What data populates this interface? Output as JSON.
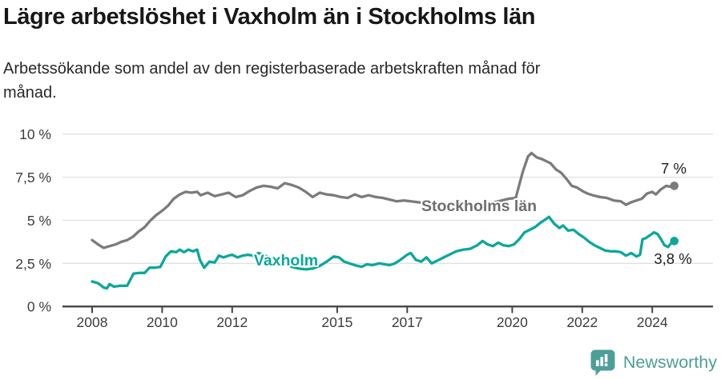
{
  "header": {
    "title": "Lägre arbetslöshet i Vaxholm än i Stockholms län",
    "subtitle": "Arbetssökande som andel av den registerbaserade arbetskraften månad för månad.",
    "subtitle_lines": [
      "Arbetssökande som andel av den registerbaserade arbetskraften månad för",
      "månad."
    ]
  },
  "footer": {
    "brand": "Newsworthy",
    "brand_color": "#4d9e99",
    "logo_icon": "bar-chart-speech-bubble-icon"
  },
  "chart_data": {
    "type": "line",
    "title": "Lägre arbetslöshet i Vaxholm än i Stockholms län",
    "xlabel": "",
    "ylabel": "",
    "unit": "%",
    "grid": "horizontal",
    "legend_position": "inline-on-line",
    "x_axis": {
      "range": [
        2007.2,
        2025.7
      ],
      "ticks": [
        2008,
        2010,
        2012,
        2015,
        2017,
        2020,
        2022,
        2024
      ],
      "tick_labels": [
        "2008",
        "2010",
        "2012",
        "2015",
        "2017",
        "2020",
        "2022",
        "2024"
      ]
    },
    "y_axis": {
      "range": [
        0,
        10
      ],
      "ticks": [
        0,
        2.5,
        5,
        7.5,
        10
      ],
      "tick_labels": [
        "0 %",
        "2,5 %",
        "5 %",
        "7,5 %",
        "10 %"
      ]
    },
    "series": [
      {
        "name": "Stockholms län",
        "color": "#7b7b7b",
        "label_color": "#6e6e6e",
        "end_value": 7.0,
        "end_label": "7 %",
        "points": [
          [
            2008.0,
            3.85
          ],
          [
            2008.17,
            3.6
          ],
          [
            2008.33,
            3.4
          ],
          [
            2008.5,
            3.5
          ],
          [
            2008.67,
            3.6
          ],
          [
            2008.83,
            3.75
          ],
          [
            2009.0,
            3.85
          ],
          [
            2009.17,
            4.05
          ],
          [
            2009.33,
            4.35
          ],
          [
            2009.5,
            4.6
          ],
          [
            2009.67,
            5.0
          ],
          [
            2009.83,
            5.3
          ],
          [
            2010.0,
            5.55
          ],
          [
            2010.17,
            5.85
          ],
          [
            2010.33,
            6.25
          ],
          [
            2010.5,
            6.5
          ],
          [
            2010.67,
            6.65
          ],
          [
            2010.83,
            6.6
          ],
          [
            2011.0,
            6.65
          ],
          [
            2011.1,
            6.45
          ],
          [
            2011.3,
            6.6
          ],
          [
            2011.5,
            6.4
          ],
          [
            2011.7,
            6.5
          ],
          [
            2011.9,
            6.6
          ],
          [
            2012.1,
            6.35
          ],
          [
            2012.3,
            6.45
          ],
          [
            2012.5,
            6.7
          ],
          [
            2012.7,
            6.9
          ],
          [
            2012.9,
            7.0
          ],
          [
            2013.1,
            6.95
          ],
          [
            2013.3,
            6.85
          ],
          [
            2013.5,
            7.15
          ],
          [
            2013.7,
            7.05
          ],
          [
            2013.9,
            6.9
          ],
          [
            2014.1,
            6.65
          ],
          [
            2014.3,
            6.35
          ],
          [
            2014.5,
            6.6
          ],
          [
            2014.7,
            6.5
          ],
          [
            2014.9,
            6.45
          ],
          [
            2015.1,
            6.35
          ],
          [
            2015.3,
            6.3
          ],
          [
            2015.5,
            6.5
          ],
          [
            2015.7,
            6.35
          ],
          [
            2015.9,
            6.45
          ],
          [
            2016.1,
            6.35
          ],
          [
            2016.3,
            6.3
          ],
          [
            2016.5,
            6.2
          ],
          [
            2016.7,
            6.1
          ],
          [
            2016.9,
            6.15
          ],
          [
            2017.1,
            6.1
          ],
          [
            2017.3,
            6.05
          ],
          [
            2017.5,
            6.0
          ],
          [
            2017.7,
            6.05
          ],
          [
            2017.9,
            5.95
          ],
          [
            2018.1,
            5.9
          ],
          [
            2018.3,
            5.95
          ],
          [
            2018.5,
            5.9
          ],
          [
            2018.7,
            5.95
          ],
          [
            2018.9,
            5.9
          ],
          [
            2019.1,
            5.95
          ],
          [
            2019.3,
            6.0
          ],
          [
            2019.5,
            6.05
          ],
          [
            2019.7,
            6.15
          ],
          [
            2019.9,
            6.25
          ],
          [
            2020.1,
            6.3
          ],
          [
            2020.3,
            7.8
          ],
          [
            2020.45,
            8.7
          ],
          [
            2020.55,
            8.9
          ],
          [
            2020.7,
            8.65
          ],
          [
            2020.85,
            8.55
          ],
          [
            2021.0,
            8.4
          ],
          [
            2021.1,
            8.3
          ],
          [
            2021.25,
            7.95
          ],
          [
            2021.4,
            7.75
          ],
          [
            2021.55,
            7.4
          ],
          [
            2021.7,
            7.0
          ],
          [
            2021.85,
            6.9
          ],
          [
            2022.0,
            6.7
          ],
          [
            2022.15,
            6.55
          ],
          [
            2022.3,
            6.45
          ],
          [
            2022.5,
            6.35
          ],
          [
            2022.7,
            6.3
          ],
          [
            2022.9,
            6.15
          ],
          [
            2023.1,
            6.1
          ],
          [
            2023.25,
            5.9
          ],
          [
            2023.4,
            6.05
          ],
          [
            2023.55,
            6.15
          ],
          [
            2023.7,
            6.25
          ],
          [
            2023.85,
            6.55
          ],
          [
            2024.0,
            6.65
          ],
          [
            2024.1,
            6.5
          ],
          [
            2024.25,
            6.8
          ],
          [
            2024.4,
            7.0
          ],
          [
            2024.5,
            6.95
          ],
          [
            2024.63,
            7.0
          ]
        ]
      },
      {
        "name": "Vaxholm",
        "color": "#0ba79b",
        "label_color": "#0ba79b",
        "end_value": 3.8,
        "end_label": "3,8 %",
        "points": [
          [
            2008.0,
            1.45
          ],
          [
            2008.17,
            1.35
          ],
          [
            2008.33,
            1.1
          ],
          [
            2008.42,
            1.05
          ],
          [
            2008.5,
            1.3
          ],
          [
            2008.62,
            1.15
          ],
          [
            2008.8,
            1.2
          ],
          [
            2009.0,
            1.2
          ],
          [
            2009.18,
            1.9
          ],
          [
            2009.35,
            1.95
          ],
          [
            2009.5,
            1.95
          ],
          [
            2009.64,
            2.25
          ],
          [
            2009.8,
            2.25
          ],
          [
            2009.95,
            2.3
          ],
          [
            2010.1,
            2.9
          ],
          [
            2010.25,
            3.2
          ],
          [
            2010.4,
            3.15
          ],
          [
            2010.5,
            3.3
          ],
          [
            2010.62,
            3.15
          ],
          [
            2010.75,
            3.3
          ],
          [
            2010.88,
            3.2
          ],
          [
            2011.0,
            3.3
          ],
          [
            2011.08,
            2.7
          ],
          [
            2011.2,
            2.25
          ],
          [
            2011.35,
            2.6
          ],
          [
            2011.5,
            2.55
          ],
          [
            2011.62,
            2.95
          ],
          [
            2011.75,
            2.85
          ],
          [
            2011.9,
            2.95
          ],
          [
            2012.0,
            3.0
          ],
          [
            2012.15,
            2.85
          ],
          [
            2012.3,
            2.95
          ],
          [
            2012.45,
            3.0
          ],
          [
            2012.6,
            2.95
          ],
          [
            2012.75,
            3.1
          ],
          [
            2012.9,
            3.0
          ],
          [
            2013.1,
            2.8
          ],
          [
            2013.3,
            2.6
          ],
          [
            2013.5,
            2.45
          ],
          [
            2013.7,
            2.3
          ],
          [
            2013.9,
            2.2
          ],
          [
            2014.1,
            2.15
          ],
          [
            2014.3,
            2.2
          ],
          [
            2014.5,
            2.35
          ],
          [
            2014.7,
            2.6
          ],
          [
            2014.9,
            2.9
          ],
          [
            2015.05,
            2.85
          ],
          [
            2015.2,
            2.6
          ],
          [
            2015.35,
            2.5
          ],
          [
            2015.5,
            2.4
          ],
          [
            2015.7,
            2.3
          ],
          [
            2015.85,
            2.45
          ],
          [
            2016.0,
            2.4
          ],
          [
            2016.2,
            2.5
          ],
          [
            2016.35,
            2.45
          ],
          [
            2016.5,
            2.4
          ],
          [
            2016.65,
            2.5
          ],
          [
            2016.8,
            2.7
          ],
          [
            2017.0,
            3.0
          ],
          [
            2017.1,
            3.1
          ],
          [
            2017.25,
            2.7
          ],
          [
            2017.4,
            2.6
          ],
          [
            2017.55,
            2.85
          ],
          [
            2017.7,
            2.5
          ],
          [
            2017.85,
            2.65
          ],
          [
            2018.0,
            2.8
          ],
          [
            2018.2,
            3.0
          ],
          [
            2018.4,
            3.2
          ],
          [
            2018.6,
            3.3
          ],
          [
            2018.8,
            3.35
          ],
          [
            2019.0,
            3.55
          ],
          [
            2019.15,
            3.8
          ],
          [
            2019.3,
            3.6
          ],
          [
            2019.45,
            3.5
          ],
          [
            2019.6,
            3.7
          ],
          [
            2019.75,
            3.55
          ],
          [
            2019.9,
            3.5
          ],
          [
            2020.05,
            3.6
          ],
          [
            2020.2,
            3.9
          ],
          [
            2020.35,
            4.3
          ],
          [
            2020.5,
            4.45
          ],
          [
            2020.65,
            4.6
          ],
          [
            2020.8,
            4.85
          ],
          [
            2020.95,
            5.05
          ],
          [
            2021.05,
            5.2
          ],
          [
            2021.2,
            4.8
          ],
          [
            2021.35,
            4.55
          ],
          [
            2021.45,
            4.7
          ],
          [
            2021.6,
            4.4
          ],
          [
            2021.75,
            4.45
          ],
          [
            2021.9,
            4.2
          ],
          [
            2022.05,
            4.0
          ],
          [
            2022.2,
            3.75
          ],
          [
            2022.35,
            3.55
          ],
          [
            2022.5,
            3.4
          ],
          [
            2022.65,
            3.25
          ],
          [
            2022.8,
            3.2
          ],
          [
            2022.95,
            3.2
          ],
          [
            2023.1,
            3.15
          ],
          [
            2023.25,
            2.95
          ],
          [
            2023.4,
            3.1
          ],
          [
            2023.55,
            2.9
          ],
          [
            2023.65,
            3.0
          ],
          [
            2023.72,
            3.9
          ],
          [
            2023.8,
            3.95
          ],
          [
            2023.95,
            4.15
          ],
          [
            2024.05,
            4.3
          ],
          [
            2024.15,
            4.2
          ],
          [
            2024.25,
            3.9
          ],
          [
            2024.35,
            3.55
          ],
          [
            2024.45,
            3.45
          ],
          [
            2024.55,
            3.7
          ],
          [
            2024.63,
            3.8
          ]
        ]
      }
    ]
  }
}
